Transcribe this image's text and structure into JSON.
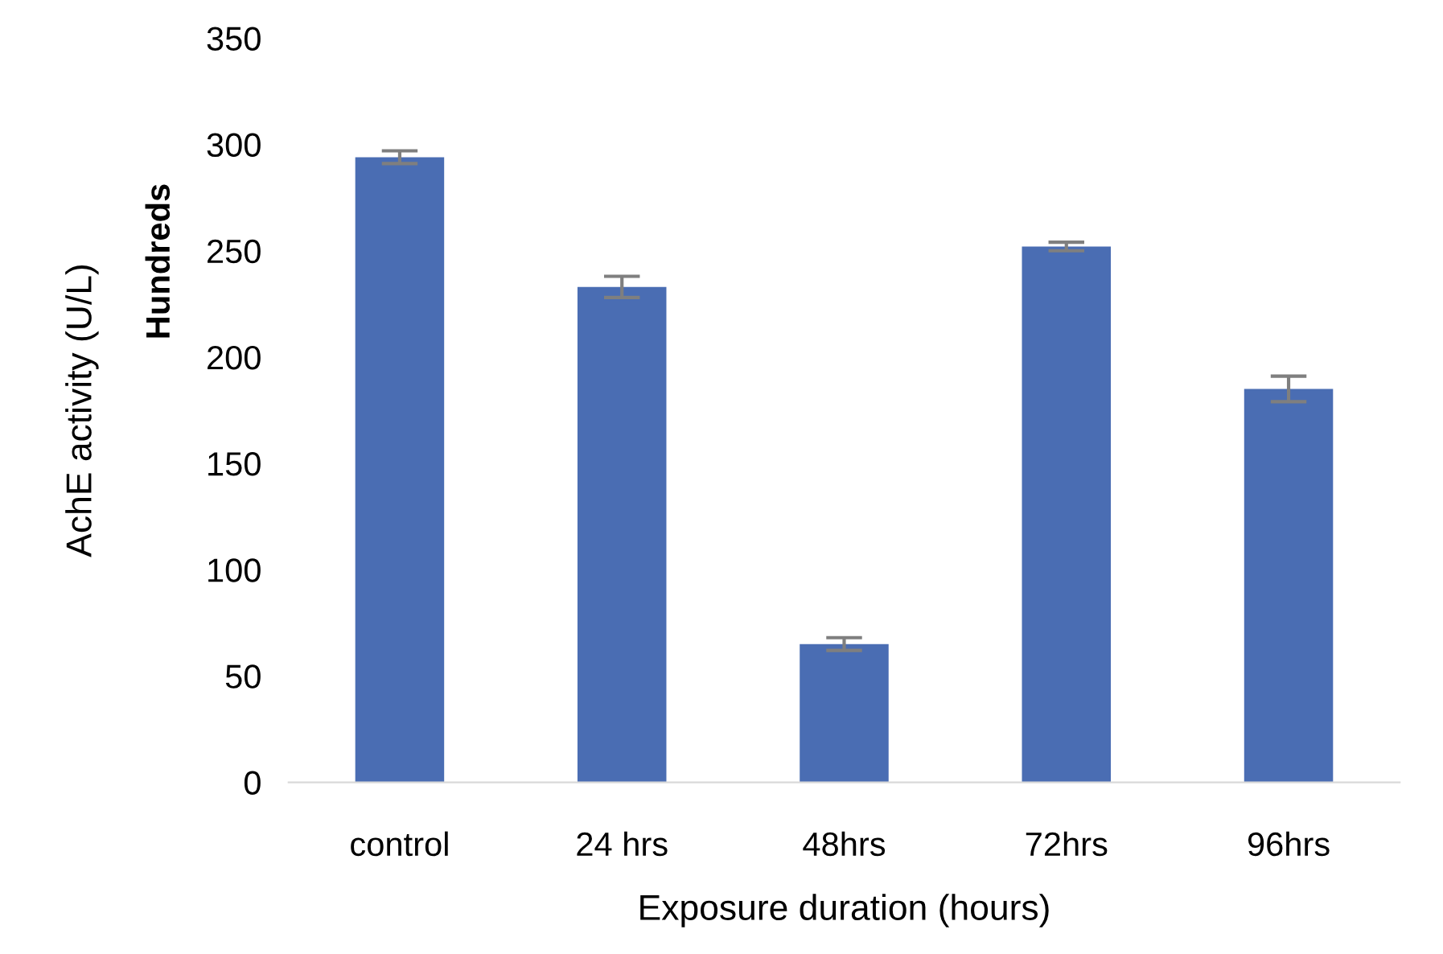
{
  "chart_data": {
    "type": "bar",
    "xlabel": "Exposure duration (hours)",
    "ylabel": "AchE activity (U/L)",
    "annotations": [
      "Hundreds"
    ],
    "categories": [
      "control",
      "24 hrs",
      "48hrs",
      "72hrs",
      "96hrs"
    ],
    "values": [
      294,
      233,
      65,
      252,
      185
    ],
    "errors": [
      3,
      5,
      3,
      2,
      6
    ],
    "color": "#4a6db3",
    "ylim": [
      0,
      350
    ],
    "yticks": [
      0,
      50,
      100,
      150,
      200,
      250,
      300,
      350
    ],
    "grid": false,
    "legend": false
  }
}
